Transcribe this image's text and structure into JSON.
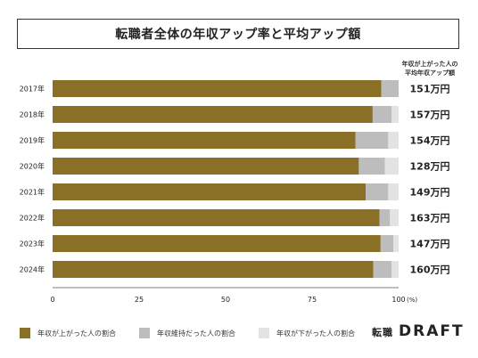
{
  "title": "転職者全体の年収アップ率と平均アップ額",
  "right_header": [
    "年収が上がった人の",
    "平均年収アップ額"
  ],
  "colors": {
    "up": "#8a7027",
    "same": "#bdbdbd",
    "down": "#e3e3e3",
    "axis": "#555555"
  },
  "legend": [
    {
      "label": "年収が上がった人の割合",
      "color_key": "up"
    },
    {
      "label": "年収維持だった人の割合",
      "color_key": "same"
    },
    {
      "label": "年収が下がった人の割合",
      "color_key": "down"
    }
  ],
  "brand": {
    "jp": "転職",
    "en": "DRAFT"
  },
  "chart_data": {
    "type": "bar",
    "orientation": "horizontal",
    "stacked": true,
    "categories": [
      "2017年",
      "2018年",
      "2019年",
      "2020年",
      "2021年",
      "2022年",
      "2023年",
      "2024年"
    ],
    "series": [
      {
        "name": "年収が上がった人の割合",
        "color_key": "up",
        "values": [
          95,
          92.5,
          87.5,
          88.5,
          90.5,
          94.5,
          94.8,
          92.7
        ]
      },
      {
        "name": "年収維持だった人の割合",
        "color_key": "same",
        "values": [
          5,
          5.5,
          9.5,
          7.5,
          6.5,
          3,
          3.7,
          5.3
        ]
      },
      {
        "name": "年収が下がった人の割合",
        "color_key": "down",
        "values": [
          0,
          2,
          3,
          4,
          3,
          2.5,
          1.5,
          2
        ]
      }
    ],
    "right_labels": [
      "151万円",
      "157万円",
      "154万円",
      "128万円",
      "149万円",
      "163万円",
      "147万円",
      "160万円"
    ],
    "xlim": [
      0,
      100
    ],
    "xticks": [
      0,
      25,
      50,
      75,
      100
    ],
    "x_unit": "(%)",
    "grid": false,
    "legend_position": "bottom-left"
  }
}
